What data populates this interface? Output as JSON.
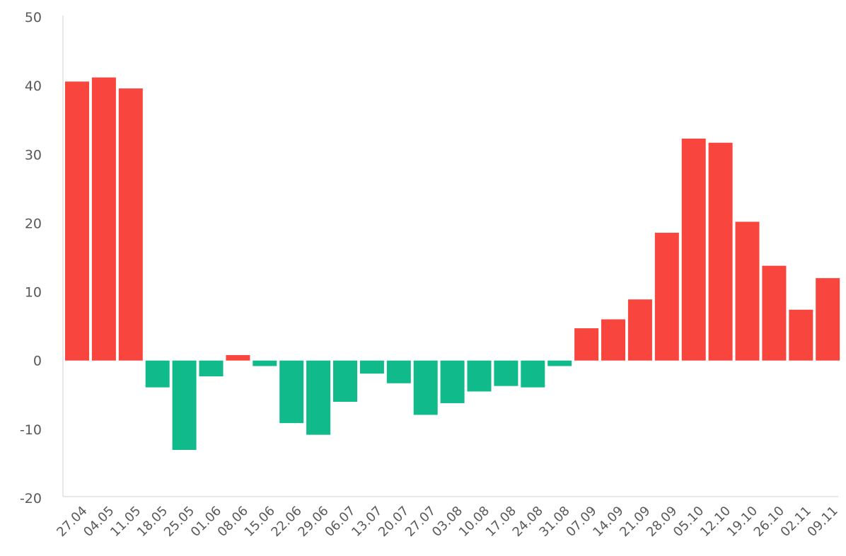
{
  "chart_data": {
    "type": "bar",
    "categories": [
      "27.04",
      "04.05",
      "11.05",
      "18.05",
      "25.05",
      "01.06",
      "08.06",
      "15.06",
      "22.06",
      "29.06",
      "06.07",
      "13.07",
      "20.07",
      "27.07",
      "03.08",
      "10.08",
      "17.08",
      "24.08",
      "31.08",
      "07.09",
      "14.09",
      "21.09",
      "28.09",
      "05.10",
      "12.10",
      "19.10",
      "26.10",
      "02.11",
      "09.11"
    ],
    "values": [
      40.6,
      41.2,
      39.6,
      -3.9,
      -13.0,
      -2.3,
      0.8,
      -0.8,
      -9.1,
      -10.8,
      -6.0,
      -1.9,
      -3.3,
      -7.9,
      -6.2,
      -4.5,
      -3.7,
      -3.9,
      -0.8,
      4.7,
      6.0,
      8.9,
      18.6,
      32.3,
      31.7,
      20.2,
      13.8,
      7.4,
      12.0
    ],
    "title": "",
    "xlabel": "",
    "ylabel": "",
    "ylim": [
      -20,
      50
    ],
    "yticks": [
      "50",
      "40",
      "30",
      "20",
      "10",
      "0",
      "-10",
      "-20"
    ],
    "grid": false,
    "colors": {
      "positive": "#F8463F",
      "negative": "#10BA8A",
      "axis": "#D9D9D9",
      "text": "#595959"
    }
  }
}
